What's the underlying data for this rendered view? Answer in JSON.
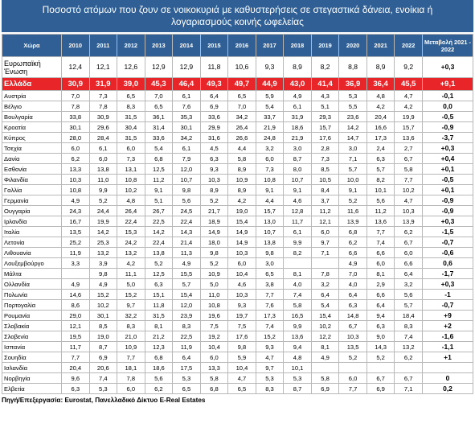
{
  "title": "Ποσοστό ατόμων που ζουν σε νοικοκυριά με καθυστερήσεις σε στεγαστικά δάνεια, ενοίκια ή λογαριασμούς κοινής ωφελείας",
  "table": {
    "header": [
      "Χώρα",
      "2010",
      "2011",
      "2012",
      "2013",
      "2014",
      "2015",
      "2016",
      "2017",
      "2018",
      "2019",
      "2020",
      "2021",
      "2022",
      "Μεταβολή 2021 - 2022"
    ],
    "rows": [
      [
        "Ευρωπαϊκή Ένωση",
        "12,4",
        "12,1",
        "12,6",
        "12,9",
        "12,9",
        "11,8",
        "10,6",
        "9,3",
        "8,9",
        "8,2",
        "8,8",
        "8,9",
        "9,2",
        "+0,3"
      ],
      [
        "Ελλάδα",
        "30,9",
        "31,9",
        "39,0",
        "45,3",
        "46,4",
        "49,3",
        "49,7",
        "44,9",
        "43,0",
        "41,4",
        "36,9",
        "36,4",
        "45,5",
        "+9,1"
      ],
      [
        "Αυστρία",
        "7,0",
        "7,3",
        "6,5",
        "7,0",
        "6,1",
        "6,4",
        "6,5",
        "5,9",
        "4,9",
        "4,3",
        "5,3",
        "4,8",
        "4,7",
        "-0,1"
      ],
      [
        "Βέλγιο",
        "7,8",
        "7,8",
        "8,3",
        "6,5",
        "7,6",
        "6,9",
        "7,0",
        "5,4",
        "6,1",
        "5,1",
        "5,5",
        "4,2",
        "4,2",
        "0,0"
      ],
      [
        "Βουλγαρία",
        "33,8",
        "30,9",
        "31,5",
        "36,1",
        "35,3",
        "33,6",
        "34,2",
        "33,7",
        "31,9",
        "29,3",
        "23,6",
        "20,4",
        "19,9",
        "-0,5"
      ],
      [
        "Κροατία",
        "30,1",
        "29,6",
        "30,4",
        "31,4",
        "30,1",
        "29,9",
        "26,4",
        "21,9",
        "18,6",
        "15,7",
        "14,2",
        "16,6",
        "15,7",
        "-0,9"
      ],
      [
        "Κύπρος",
        "28,0",
        "28,4",
        "31,5",
        "33,6",
        "34,2",
        "31,6",
        "26,6",
        "24,8",
        "21,9",
        "17,6",
        "14,7",
        "17,3",
        "13,6",
        "-3,7"
      ],
      [
        "Τσεχία",
        "6,0",
        "6,1",
        "6,0",
        "5,4",
        "6,1",
        "4,5",
        "4,4",
        "3,2",
        "3,0",
        "2,8",
        "3,0",
        "2,4",
        "2,7",
        "+0,3"
      ],
      [
        "Δανία",
        "6,2",
        "6,0",
        "7,3",
        "6,8",
        "7,9",
        "6,3",
        "5,8",
        "6,0",
        "8,7",
        "7,3",
        "7,1",
        "6,3",
        "6,7",
        "+0,4"
      ],
      [
        "Εσθονία",
        "13,3",
        "13,8",
        "13,1",
        "12,5",
        "12,0",
        "9,3",
        "8,9",
        "7,3",
        "8,0",
        "8,5",
        "5,7",
        "5,7",
        "5,8",
        "+0,1"
      ],
      [
        "Φιλανδία",
        "10,3",
        "11,0",
        "10,8",
        "11,2",
        "10,7",
        "10,3",
        "10,9",
        "10,8",
        "10,7",
        "10,5",
        "10,0",
        "8,2",
        "7,7",
        "-0,5"
      ],
      [
        "Γαλλία",
        "10,8",
        "9,9",
        "10,2",
        "9,1",
        "9,8",
        "8,9",
        "8,9",
        "9,1",
        "9,1",
        "8,4",
        "9,1",
        "10,1",
        "10,2",
        "+0,1"
      ],
      [
        "Γερμανία",
        "4,9",
        "5,2",
        "4,8",
        "5,1",
        "5,6",
        "5,2",
        "4,2",
        "4,4",
        "4,6",
        "3,7",
        "5,2",
        "5,6",
        "4,7",
        "-0,9"
      ],
      [
        "Ουγγαρία",
        "24,3",
        "24,4",
        "26,4",
        "26,7",
        "24,5",
        "21,7",
        "19,0",
        "15,7",
        "12,8",
        "11,2",
        "11,6",
        "11,2",
        "10,3",
        "-0,9"
      ],
      [
        "Ιρλανδία",
        "16,7",
        "19,9",
        "22,4",
        "22,5",
        "22,4",
        "18,9",
        "15,4",
        "13,0",
        "11,7",
        "12,1",
        "13,9",
        "13,6",
        "13,9",
        "+0,3"
      ],
      [
        "Ιταλία",
        "13,5",
        "14,2",
        "15,3",
        "14,2",
        "14,3",
        "14,9",
        "14,9",
        "10,7",
        "6,1",
        "6,0",
        "6,8",
        "7,7",
        "6,2",
        "-1,5"
      ],
      [
        "Λετονία",
        "25,2",
        "25,3",
        "24,2",
        "22,4",
        "21,4",
        "18,0",
        "14,9",
        "13,8",
        "9,9",
        "9,7",
        "6,2",
        "7,4",
        "6,7",
        "-0,7"
      ],
      [
        "Λιθουανία",
        "11,9",
        "13,2",
        "13,2",
        "13,8",
        "11,3",
        "9,8",
        "10,3",
        "9,8",
        "8,2",
        "7,1",
        "6,6",
        "6,6",
        "6,0",
        "-0,6"
      ],
      [
        "Λουξεμβούργο",
        "3,3",
        "3,9",
        "4,2",
        "5,2",
        "4,9",
        "5,2",
        "6,0",
        "3,0",
        null,
        null,
        "4,9",
        "6,0",
        "6,6",
        "0,6"
      ],
      [
        "Μάλτα",
        null,
        "9,8",
        "11,1",
        "12,5",
        "15,5",
        "10,9",
        "10,4",
        "6,5",
        "8,1",
        "7,8",
        "7,0",
        "8,1",
        "6,4",
        "-1,7"
      ],
      [
        "Ολλανδία",
        "4,9",
        "4,9",
        "5,0",
        "6,3",
        "5,7",
        "5,0",
        "4,6",
        "3,8",
        "4,0",
        "3,2",
        "4,0",
        "2,9",
        "3,2",
        "+0,3"
      ],
      [
        "Πολωνία",
        "14,6",
        "15,2",
        "15,2",
        "15,1",
        "15,4",
        "11,0",
        "10,3",
        "7,7",
        "7,4",
        "6,4",
        "6,4",
        "6,6",
        "5,6",
        "-1"
      ],
      [
        "Πορτογαλία",
        "8,6",
        "10,2",
        "9,7",
        "11,8",
        "12,0",
        "10,8",
        "9,3",
        "7,6",
        "5,8",
        "5,4",
        "6,3",
        "6,4",
        "5,7",
        "-0,7"
      ],
      [
        "Ρουμανία",
        "29,0",
        "30,1",
        "32,2",
        "31,5",
        "23,9",
        "19,6",
        "19,7",
        "17,3",
        "16,5",
        "15,4",
        "14,8",
        "9,4",
        "18,4",
        "+9"
      ],
      [
        "Σλοβακία",
        "12,1",
        "8,5",
        "8,3",
        "8,1",
        "8,3",
        "7,5",
        "7,5",
        "7,4",
        "9,9",
        "10,2",
        "6,7",
        "6,3",
        "8,3",
        "+2"
      ],
      [
        "Σλοβενία",
        "19,5",
        "19,0",
        "21,0",
        "21,2",
        "22,5",
        "19,2",
        "17,6",
        "15,2",
        "13,6",
        "12,2",
        "10,3",
        "9,0",
        "7,4",
        "-1,6"
      ],
      [
        "Ισπανία",
        "11,7",
        "8,7",
        "10,9",
        "12,3",
        "11,9",
        "10,4",
        "9,8",
        "9,3",
        "9,4",
        "8,1",
        "13,5",
        "14,3",
        "13,2",
        "-1,1"
      ],
      [
        "Σουηδία",
        "7,7",
        "6,9",
        "7,7",
        "6,8",
        "6,4",
        "6,0",
        "5,9",
        "4,7",
        "4,8",
        "4,9",
        "5,2",
        "5,2",
        "6,2",
        "+1"
      ],
      [
        "Ισλανδία",
        "20,4",
        "20,6",
        "18,1",
        "18,6",
        "17,5",
        "13,3",
        "10,4",
        "9,7",
        "10,1",
        null,
        null,
        null,
        null,
        null
      ],
      [
        "Νορβηγία",
        "9,6",
        "7,4",
        "7,8",
        "5,6",
        "5,3",
        "5,8",
        "4,7",
        "5,3",
        "5,3",
        "5,8",
        "6,0",
        "6,7",
        "6,7",
        "0"
      ],
      [
        "Ελβετία",
        "6,3",
        "5,3",
        "6,0",
        "6,2",
        "6,5",
        "6,8",
        "6,5",
        "8,3",
        "8,7",
        "6,9",
        "7,7",
        "6,9",
        "7,1",
        "0,2"
      ]
    ]
  },
  "source": "Πηγή/Επεξεργασία: Eurostat, Πανελλαδικό Δίκτυο E-Real Estates"
}
